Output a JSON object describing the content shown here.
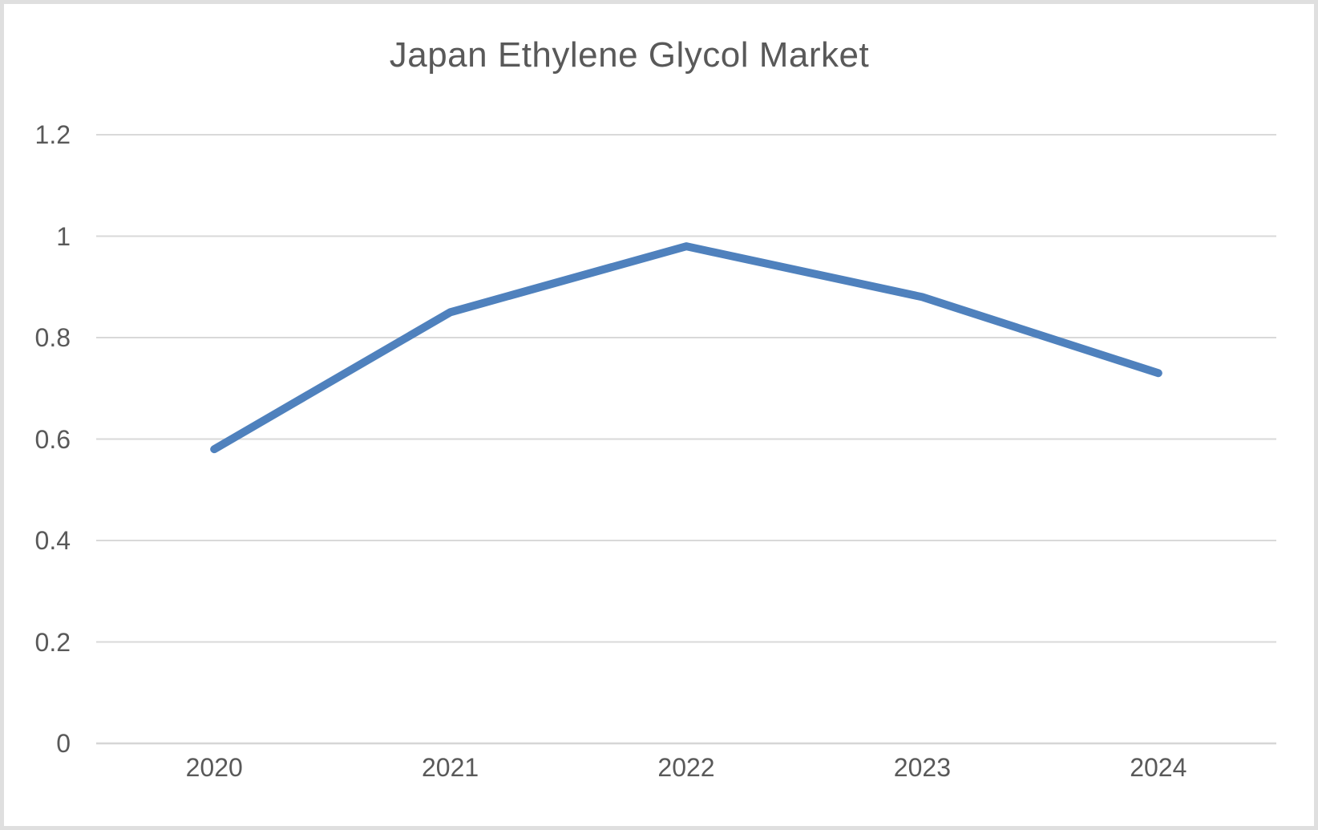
{
  "chart_data": {
    "type": "line",
    "title": "Japan Ethylene Glycol Market",
    "categories": [
      "2020",
      "2021",
      "2022",
      "2023",
      "2024"
    ],
    "series": [
      {
        "name": "Japan Ethylene Glycol Market",
        "values": [
          0.58,
          0.85,
          0.98,
          0.88,
          0.73
        ]
      }
    ],
    "xlabel": "",
    "ylabel": "",
    "ylim": [
      0,
      1.2
    ],
    "ytick_step": 0.2,
    "ytick_labels": [
      "0",
      "0.2",
      "0.4",
      "0.6",
      "0.8",
      "1",
      "1.2"
    ],
    "grid": true,
    "legend": false,
    "colors": {
      "line": "#4f81bd",
      "text": "#595959",
      "gridline": "#d9d9d9",
      "axis_line": "#d6d6d6",
      "frame_border": "#dfdfdf",
      "background": "#ffffff"
    }
  }
}
